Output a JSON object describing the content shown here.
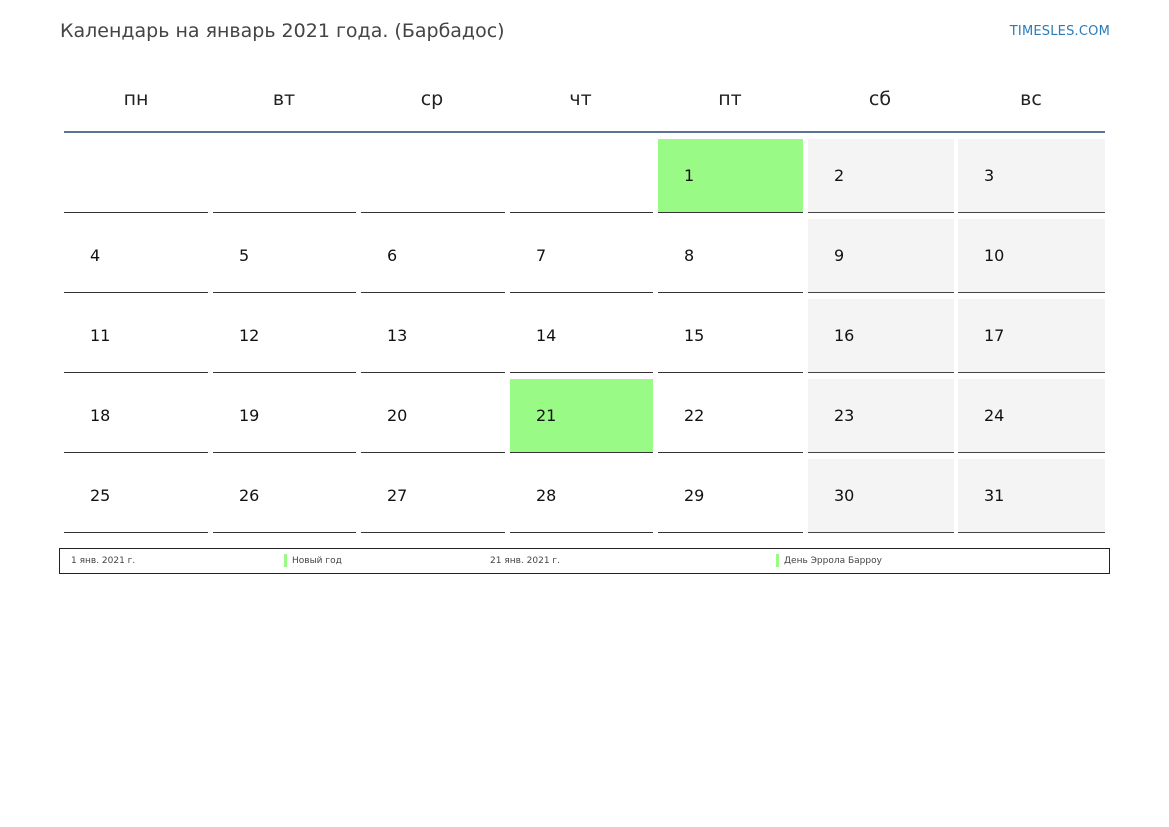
{
  "header": {
    "title": "Календарь на январь 2021 года. (Барбадос)",
    "site": "TIMESLES.COM"
  },
  "weekdays": [
    "пн",
    "вт",
    "ср",
    "чт",
    "пт",
    "сб",
    "вс"
  ],
  "colors": {
    "holiday": "#9afa86",
    "weekend": "#f4f4f4",
    "header_line": "#5b7493",
    "link": "#2b7bb9"
  },
  "weeks": [
    [
      {
        "day": "",
        "weekend": false,
        "holiday": false
      },
      {
        "day": "",
        "weekend": false,
        "holiday": false
      },
      {
        "day": "",
        "weekend": false,
        "holiday": false
      },
      {
        "day": "",
        "weekend": false,
        "holiday": false
      },
      {
        "day": "1",
        "weekend": false,
        "holiday": true
      },
      {
        "day": "2",
        "weekend": true,
        "holiday": false
      },
      {
        "day": "3",
        "weekend": true,
        "holiday": false
      }
    ],
    [
      {
        "day": "4",
        "weekend": false,
        "holiday": false
      },
      {
        "day": "5",
        "weekend": false,
        "holiday": false
      },
      {
        "day": "6",
        "weekend": false,
        "holiday": false
      },
      {
        "day": "7",
        "weekend": false,
        "holiday": false
      },
      {
        "day": "8",
        "weekend": false,
        "holiday": false
      },
      {
        "day": "9",
        "weekend": true,
        "holiday": false
      },
      {
        "day": "10",
        "weekend": true,
        "holiday": false
      }
    ],
    [
      {
        "day": "11",
        "weekend": false,
        "holiday": false
      },
      {
        "day": "12",
        "weekend": false,
        "holiday": false
      },
      {
        "day": "13",
        "weekend": false,
        "holiday": false
      },
      {
        "day": "14",
        "weekend": false,
        "holiday": false
      },
      {
        "day": "15",
        "weekend": false,
        "holiday": false
      },
      {
        "day": "16",
        "weekend": true,
        "holiday": false
      },
      {
        "day": "17",
        "weekend": true,
        "holiday": false
      }
    ],
    [
      {
        "day": "18",
        "weekend": false,
        "holiday": false
      },
      {
        "day": "19",
        "weekend": false,
        "holiday": false
      },
      {
        "day": "20",
        "weekend": false,
        "holiday": false
      },
      {
        "day": "21",
        "weekend": false,
        "holiday": true
      },
      {
        "day": "22",
        "weekend": false,
        "holiday": false
      },
      {
        "day": "23",
        "weekend": true,
        "holiday": false
      },
      {
        "day": "24",
        "weekend": true,
        "holiday": false
      }
    ],
    [
      {
        "day": "25",
        "weekend": false,
        "holiday": false
      },
      {
        "day": "26",
        "weekend": false,
        "holiday": false
      },
      {
        "day": "27",
        "weekend": false,
        "holiday": false
      },
      {
        "day": "28",
        "weekend": false,
        "holiday": false
      },
      {
        "day": "29",
        "weekend": false,
        "holiday": false
      },
      {
        "day": "30",
        "weekend": true,
        "holiday": false
      },
      {
        "day": "31",
        "weekend": true,
        "holiday": false
      }
    ]
  ],
  "legend": [
    {
      "date": "1 янв. 2021 г.",
      "name": "Новый год"
    },
    {
      "date": "21 янв. 2021 г.",
      "name": "День Эррола Барроу"
    }
  ]
}
